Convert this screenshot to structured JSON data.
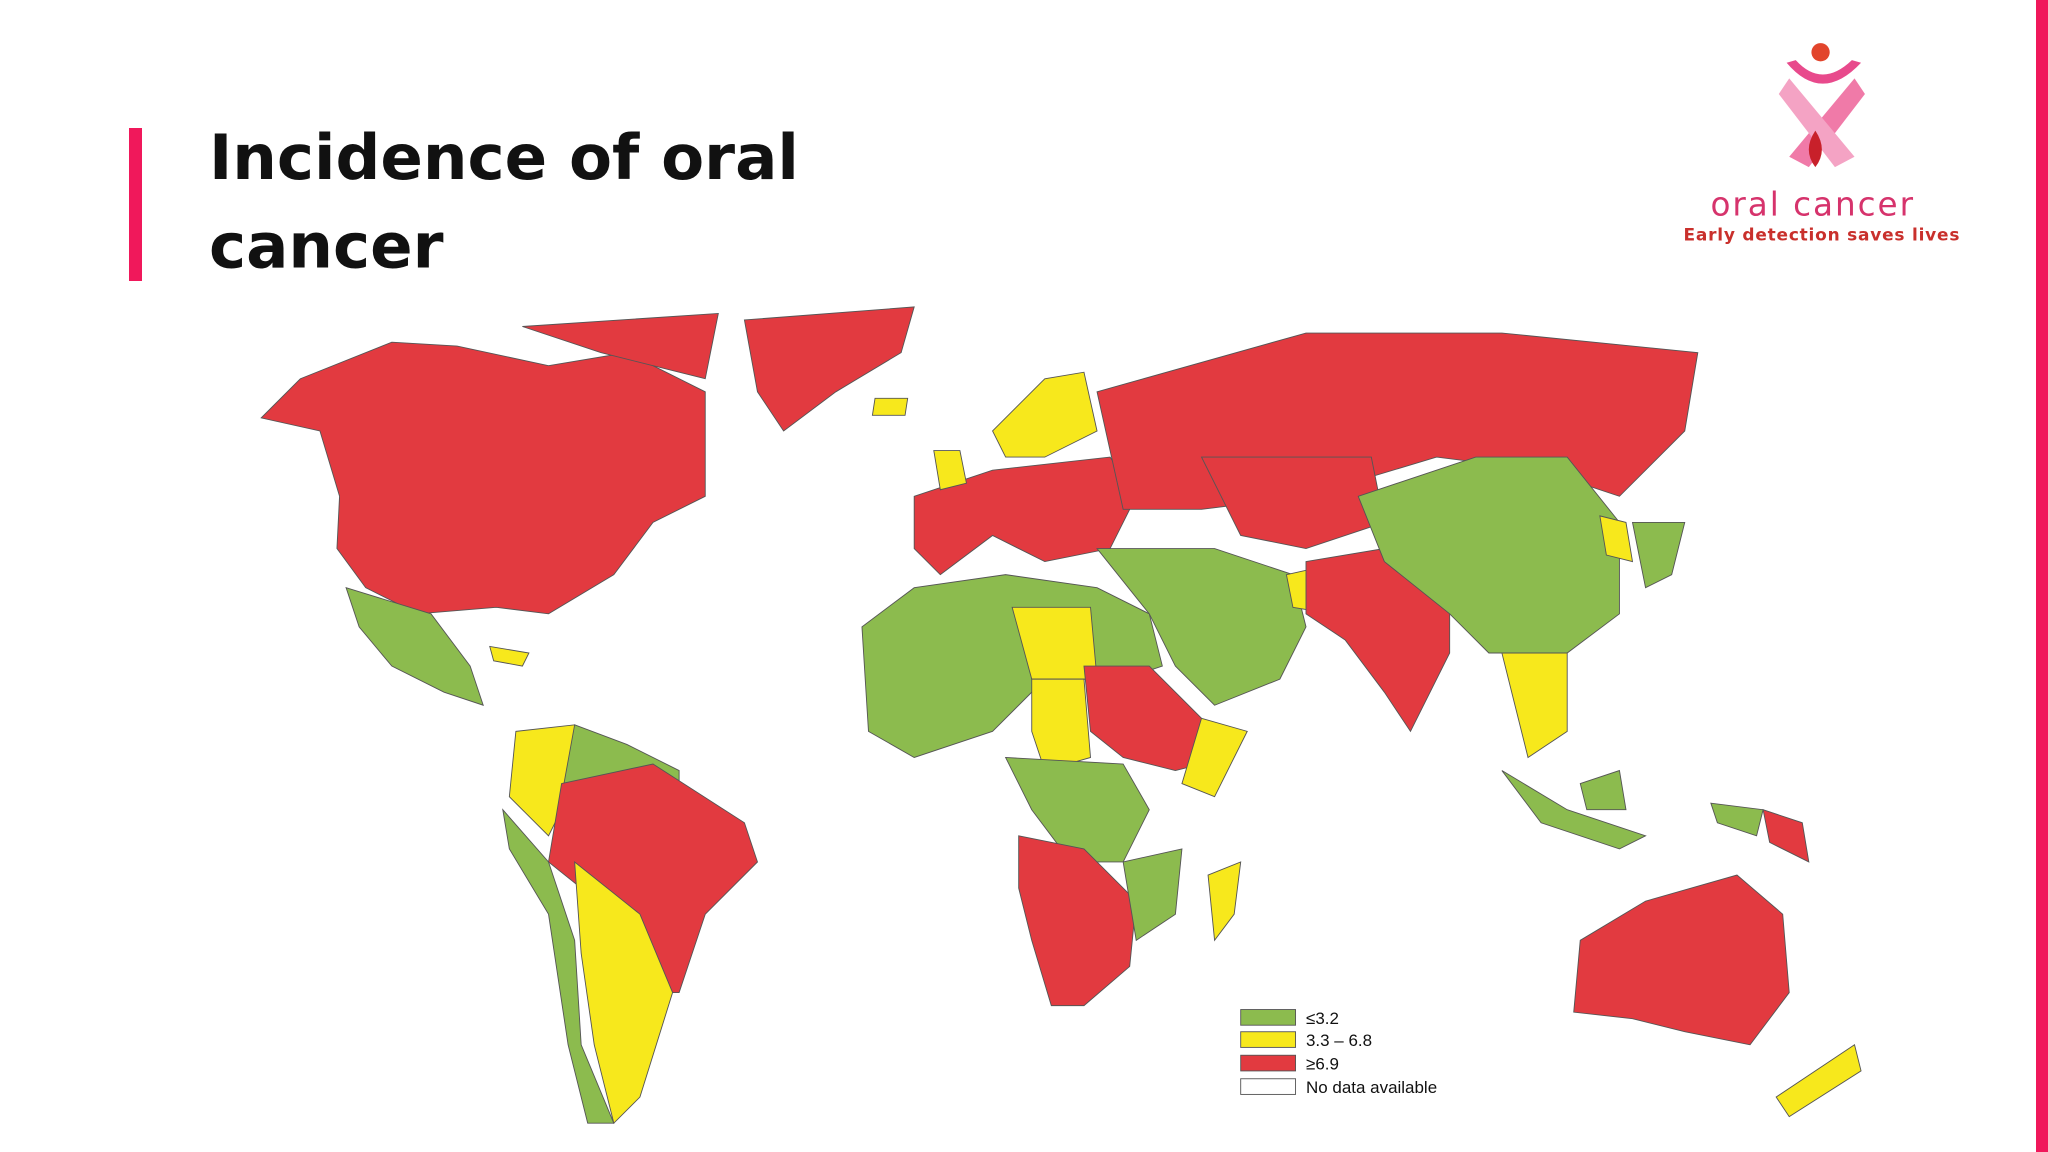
{
  "header": {
    "title": "Incidence of oral cancer"
  },
  "logo": {
    "name": "oral cancer",
    "tagline": "Early detection saves lives"
  },
  "legend": {
    "items": [
      {
        "label": "≤3.2"
      },
      {
        "label": "3.3 – 6.8"
      },
      {
        "label": "≥6.9"
      },
      {
        "label": "No data available"
      }
    ]
  }
}
